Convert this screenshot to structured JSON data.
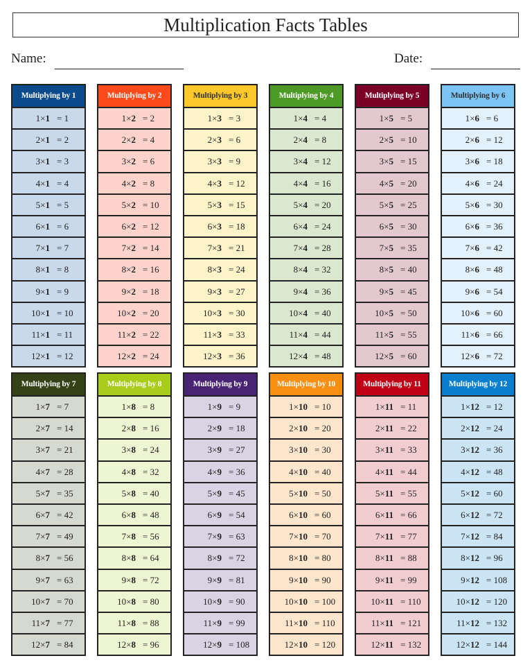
{
  "title": "Multiplication Facts Tables",
  "name_label": "Name:",
  "date_label": "Date:",
  "times_sign": "×",
  "equals_sign": "=",
  "tables": [
    {
      "header": "Multiplying by 1",
      "n": "1",
      "head_color": "#0b4a8b",
      "head_text": "#ffffff",
      "body_color": "#c9d9ea",
      "rows": [
        [
          "1",
          "1"
        ],
        [
          "2",
          "2"
        ],
        [
          "3",
          "3"
        ],
        [
          "4",
          "4"
        ],
        [
          "5",
          "5"
        ],
        [
          "6",
          "6"
        ],
        [
          "7",
          "7"
        ],
        [
          "8",
          "8"
        ],
        [
          "9",
          "9"
        ],
        [
          "10",
          "10"
        ],
        [
          "11",
          "11"
        ],
        [
          "12",
          "12"
        ]
      ]
    },
    {
      "header": "Multiplying by 2",
      "n": "2",
      "head_color": "#fc4a1a",
      "head_text": "#ffffff",
      "body_color": "#fdd3cc",
      "rows": [
        [
          "1",
          "2"
        ],
        [
          "2",
          "4"
        ],
        [
          "3",
          "6"
        ],
        [
          "4",
          "8"
        ],
        [
          "5",
          "10"
        ],
        [
          "6",
          "12"
        ],
        [
          "7",
          "14"
        ],
        [
          "8",
          "16"
        ],
        [
          "9",
          "18"
        ],
        [
          "10",
          "20"
        ],
        [
          "11",
          "22"
        ],
        [
          "12",
          "24"
        ]
      ]
    },
    {
      "header": "Multiplying by 3",
      "n": "3",
      "head_color": "#fcc82a",
      "head_text": "#333333",
      "body_color": "#fdf3c9",
      "rows": [
        [
          "1",
          "3"
        ],
        [
          "2",
          "6"
        ],
        [
          "3",
          "9"
        ],
        [
          "4",
          "12"
        ],
        [
          "5",
          "15"
        ],
        [
          "6",
          "18"
        ],
        [
          "7",
          "21"
        ],
        [
          "8",
          "24"
        ],
        [
          "9",
          "27"
        ],
        [
          "10",
          "30"
        ],
        [
          "11",
          "33"
        ],
        [
          "12",
          "36"
        ]
      ]
    },
    {
      "header": "Multiplying by 4",
      "n": "4",
      "head_color": "#4e9a26",
      "head_text": "#ffffff",
      "body_color": "#d9e8cf",
      "rows": [
        [
          "1",
          "4"
        ],
        [
          "2",
          "8"
        ],
        [
          "3",
          "12"
        ],
        [
          "4",
          "16"
        ],
        [
          "5",
          "20"
        ],
        [
          "6",
          "24"
        ],
        [
          "7",
          "28"
        ],
        [
          "8",
          "32"
        ],
        [
          "9",
          "36"
        ],
        [
          "10",
          "40"
        ],
        [
          "11",
          "44"
        ],
        [
          "12",
          "48"
        ]
      ]
    },
    {
      "header": "Multiplying by 5",
      "n": "5",
      "head_color": "#7a0027",
      "head_text": "#ffffff",
      "body_color": "#e3c8cf",
      "rows": [
        [
          "1",
          "5"
        ],
        [
          "2",
          "10"
        ],
        [
          "3",
          "15"
        ],
        [
          "4",
          "20"
        ],
        [
          "5",
          "25"
        ],
        [
          "6",
          "30"
        ],
        [
          "7",
          "35"
        ],
        [
          "8",
          "40"
        ],
        [
          "9",
          "45"
        ],
        [
          "10",
          "50"
        ],
        [
          "11",
          "55"
        ],
        [
          "12",
          "60"
        ]
      ]
    },
    {
      "header": "Multiplying by 6",
      "n": "6",
      "head_color": "#7cc4f4",
      "head_text": "#333333",
      "body_color": "#e3f1fc",
      "rows": [
        [
          "1",
          "6"
        ],
        [
          "2",
          "12"
        ],
        [
          "3",
          "18"
        ],
        [
          "4",
          "24"
        ],
        [
          "5",
          "30"
        ],
        [
          "6",
          "36"
        ],
        [
          "7",
          "42"
        ],
        [
          "8",
          "48"
        ],
        [
          "9",
          "54"
        ],
        [
          "10",
          "60"
        ],
        [
          "11",
          "66"
        ],
        [
          "12",
          "72"
        ]
      ]
    },
    {
      "header": "Multiplying by 7",
      "n": "7",
      "head_color": "#354216",
      "head_text": "#ffffff",
      "body_color": "#d6d9d0",
      "rows": [
        [
          "1",
          "7"
        ],
        [
          "2",
          "14"
        ],
        [
          "3",
          "21"
        ],
        [
          "4",
          "28"
        ],
        [
          "5",
          "35"
        ],
        [
          "6",
          "42"
        ],
        [
          "7",
          "49"
        ],
        [
          "8",
          "56"
        ],
        [
          "9",
          "63"
        ],
        [
          "10",
          "70"
        ],
        [
          "11",
          "77"
        ],
        [
          "12",
          "84"
        ]
      ]
    },
    {
      "header": "Multiplying by 8",
      "n": "8",
      "head_color": "#a8cc1a",
      "head_text": "#ffffff",
      "body_color": "#eef5d2",
      "rows": [
        [
          "1",
          "8"
        ],
        [
          "2",
          "16"
        ],
        [
          "3",
          "24"
        ],
        [
          "4",
          "32"
        ],
        [
          "5",
          "40"
        ],
        [
          "6",
          "48"
        ],
        [
          "7",
          "56"
        ],
        [
          "8",
          "64"
        ],
        [
          "9",
          "72"
        ],
        [
          "10",
          "80"
        ],
        [
          "11",
          "88"
        ],
        [
          "12",
          "96"
        ]
      ]
    },
    {
      "header": "Multiplying by 9",
      "n": "9",
      "head_color": "#4a2474",
      "head_text": "#ffffff",
      "body_color": "#dad3e4",
      "rows": [
        [
          "1",
          "9"
        ],
        [
          "2",
          "18"
        ],
        [
          "3",
          "27"
        ],
        [
          "4",
          "36"
        ],
        [
          "5",
          "45"
        ],
        [
          "6",
          "54"
        ],
        [
          "7",
          "63"
        ],
        [
          "8",
          "72"
        ],
        [
          "9",
          "81"
        ],
        [
          "10",
          "90"
        ],
        [
          "11",
          "99"
        ],
        [
          "12",
          "108"
        ]
      ]
    },
    {
      "header": "Multiplying by 10",
      "n": "10",
      "head_color": "#f98f12",
      "head_text": "#ffffff",
      "body_color": "#fde6cc",
      "rows": [
        [
          "1",
          "10"
        ],
        [
          "2",
          "20"
        ],
        [
          "3",
          "30"
        ],
        [
          "4",
          "40"
        ],
        [
          "5",
          "50"
        ],
        [
          "6",
          "60"
        ],
        [
          "7",
          "70"
        ],
        [
          "8",
          "80"
        ],
        [
          "9",
          "90"
        ],
        [
          "10",
          "100"
        ],
        [
          "11",
          "110"
        ],
        [
          "12",
          "120"
        ]
      ]
    },
    {
      "header": "Multiplying by 11",
      "n": "11",
      "head_color": "#c00016",
      "head_text": "#ffffff",
      "body_color": "#f1cdd0",
      "rows": [
        [
          "1",
          "11"
        ],
        [
          "2",
          "22"
        ],
        [
          "3",
          "33"
        ],
        [
          "4",
          "44"
        ],
        [
          "5",
          "55"
        ],
        [
          "6",
          "66"
        ],
        [
          "7",
          "77"
        ],
        [
          "8",
          "88"
        ],
        [
          "9",
          "99"
        ],
        [
          "10",
          "110"
        ],
        [
          "11",
          "121"
        ],
        [
          "12",
          "132"
        ]
      ]
    },
    {
      "header": "Multiplying by 12",
      "n": "12",
      "head_color": "#0a7fcf",
      "head_text": "#ffffff",
      "body_color": "#cce5f5",
      "rows": [
        [
          "1",
          "12"
        ],
        [
          "2",
          "24"
        ],
        [
          "3",
          "36"
        ],
        [
          "4",
          "48"
        ],
        [
          "5",
          "60"
        ],
        [
          "6",
          "72"
        ],
        [
          "7",
          "84"
        ],
        [
          "8",
          "96"
        ],
        [
          "9",
          "108"
        ],
        [
          "10",
          "120"
        ],
        [
          "11",
          "132"
        ],
        [
          "12",
          "144"
        ]
      ]
    }
  ]
}
